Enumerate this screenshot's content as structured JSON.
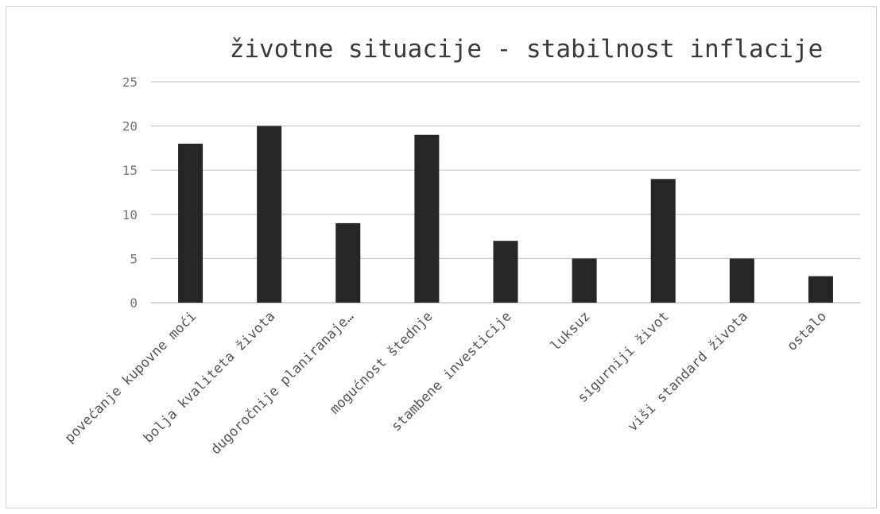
{
  "chart_data": {
    "type": "bar",
    "title": "životne situacije - stabilnost inflacije",
    "categories": [
      "povećanje kupovne moći",
      "bolja kvaliteta života",
      "dugoročnije planiranaje…",
      "mogućnost štednje",
      "stambene investicije",
      "luksuz",
      "sigurniji život",
      "viši standard života",
      "ostalo"
    ],
    "values": [
      18,
      20,
      9,
      19,
      7,
      5,
      14,
      5,
      3
    ],
    "ylim": [
      0,
      25
    ],
    "yticks": [
      0,
      5,
      10,
      15,
      20,
      25
    ],
    "grid": true,
    "legend": "none",
    "xlabel": "",
    "ylabel": "",
    "colors": {
      "bar": "#262626",
      "grid": "#c9c9c9"
    }
  }
}
